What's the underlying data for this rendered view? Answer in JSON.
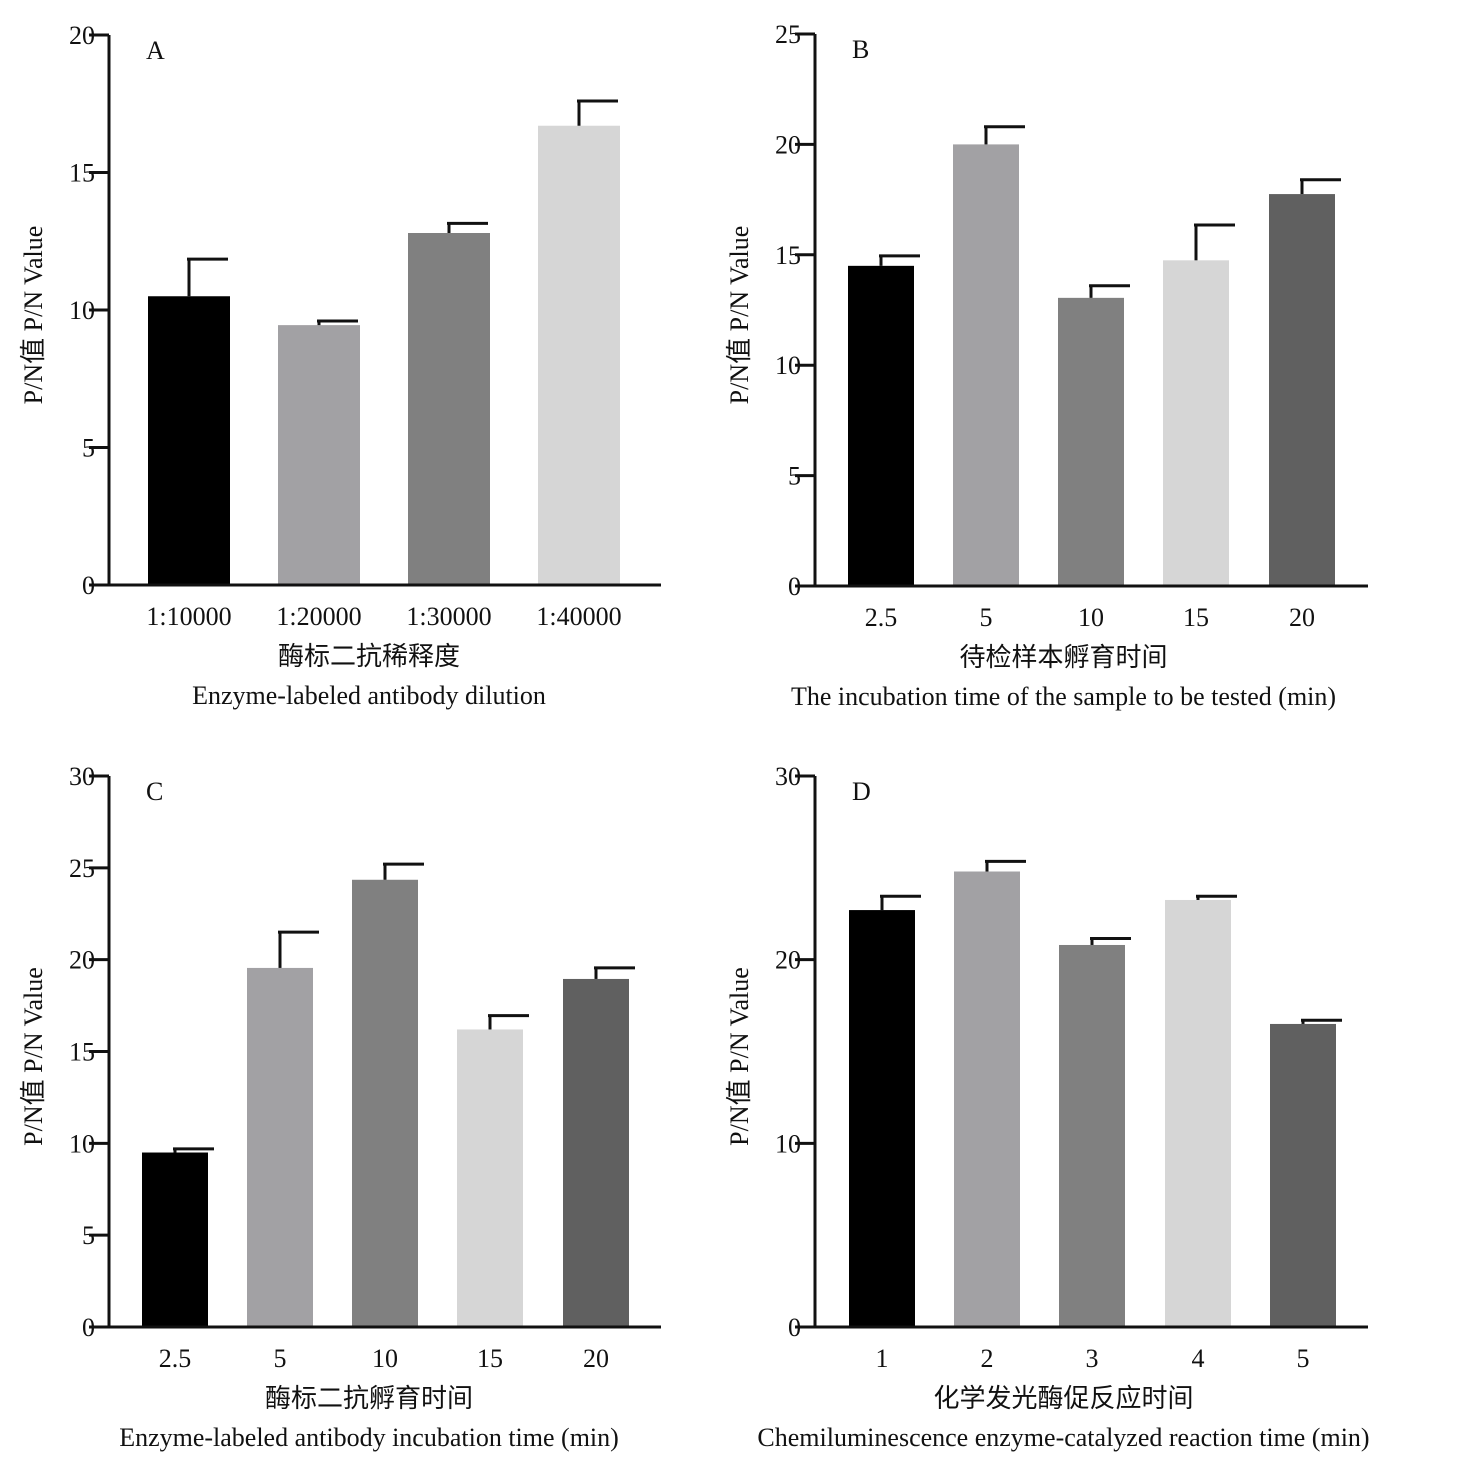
{
  "figure": {
    "bar_colors": [
      "#000000",
      "#a2a1a4",
      "#808080",
      "#d6d6d6",
      "#606060"
    ],
    "line_color": "#111111"
  },
  "chart_data": [
    {
      "type": "bar",
      "panel": "A",
      "categories": [
        "1:10000",
        "1:20000",
        "1:30000",
        "1:40000"
      ],
      "values": [
        10.5,
        9.45,
        12.8,
        16.7
      ],
      "errors": [
        1.35,
        0.15,
        0.35,
        0.9
      ],
      "ylim": [
        0,
        20
      ],
      "yticks": [
        0,
        5,
        10,
        15,
        20
      ],
      "ylabel": "P/N值 P/N Value",
      "xlabel_cn": "酶标二抗稀释度",
      "xlabel_en": "Enzyme-labeled antibody dilution",
      "grid": false,
      "legend": false
    },
    {
      "type": "bar",
      "panel": "B",
      "categories": [
        "2.5",
        "5",
        "10",
        "15",
        "20"
      ],
      "values": [
        14.5,
        20.0,
        13.05,
        14.75,
        17.75
      ],
      "errors": [
        0.45,
        0.8,
        0.55,
        1.6,
        0.65
      ],
      "ylim": [
        0,
        25
      ],
      "yticks": [
        0,
        5,
        10,
        15,
        20,
        25
      ],
      "ylabel": "P/N值 P/N Value",
      "xlabel_cn": "待检样本孵育时间",
      "xlabel_en": "The incubation time of the sample to be tested (min)",
      "grid": false,
      "legend": false
    },
    {
      "type": "bar",
      "panel": "C",
      "categories": [
        "2.5",
        "5",
        "10",
        "15",
        "20"
      ],
      "values": [
        9.5,
        19.55,
        24.35,
        16.2,
        18.95
      ],
      "errors": [
        0.2,
        1.95,
        0.85,
        0.75,
        0.6
      ],
      "ylim": [
        0,
        30
      ],
      "yticks": [
        0,
        5,
        10,
        15,
        20,
        25,
        30
      ],
      "ylabel": "P/N值 P/N Value",
      "xlabel_cn": "酶标二抗孵育时间",
      "xlabel_en": "Enzyme-labeled antibody incubation time (min)",
      "grid": false,
      "legend": false
    },
    {
      "type": "bar",
      "panel": "D",
      "categories": [
        "1",
        "2",
        "3",
        "4",
        "5"
      ],
      "values": [
        22.7,
        24.8,
        20.8,
        23.25,
        16.5
      ],
      "errors": [
        0.75,
        0.55,
        0.35,
        0.2,
        0.2
      ],
      "ylim": [
        0,
        30
      ],
      "yticks": [
        0,
        10,
        20,
        30
      ],
      "ylabel": "P/N值 P/N Value",
      "xlabel_cn": "化学发光酶促反应时间",
      "xlabel_en": "Chemiluminescence enzyme-catalyzed reaction time (min)",
      "grid": false,
      "legend": false
    }
  ]
}
